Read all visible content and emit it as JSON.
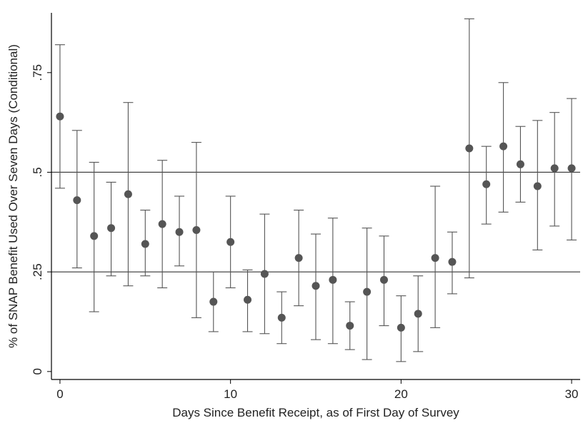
{
  "chart_data": {
    "type": "scatter",
    "xlabel": "Days Since Benefit Receipt, as of First Day of Survey",
    "ylabel": "% of SNAP Benefit Used Over Seven Days (Conditional)",
    "xlim": [
      -0.5,
      30.5
    ],
    "ylim": [
      -0.02,
      0.9
    ],
    "x_ticks": [
      0,
      10,
      20,
      30
    ],
    "x_tick_labels": [
      "0",
      "10",
      "20",
      "30"
    ],
    "y_ticks": [
      0,
      0.25,
      0.5,
      0.75
    ],
    "y_tick_labels": [
      "0",
      ".25",
      ".5",
      ".75"
    ],
    "reference_lines_y": [
      0.25,
      0.5
    ],
    "grid": false,
    "points": [
      {
        "x": 0,
        "y": 0.64,
        "lo": 0.46,
        "hi": 0.82
      },
      {
        "x": 1,
        "y": 0.43,
        "lo": 0.26,
        "hi": 0.605
      },
      {
        "x": 2,
        "y": 0.34,
        "lo": 0.15,
        "hi": 0.525
      },
      {
        "x": 3,
        "y": 0.36,
        "lo": 0.24,
        "hi": 0.475
      },
      {
        "x": 4,
        "y": 0.445,
        "lo": 0.215,
        "hi": 0.675
      },
      {
        "x": 5,
        "y": 0.32,
        "lo": 0.24,
        "hi": 0.405
      },
      {
        "x": 6,
        "y": 0.37,
        "lo": 0.21,
        "hi": 0.53
      },
      {
        "x": 7,
        "y": 0.35,
        "lo": 0.265,
        "hi": 0.44
      },
      {
        "x": 8,
        "y": 0.355,
        "lo": 0.135,
        "hi": 0.575
      },
      {
        "x": 9,
        "y": 0.175,
        "lo": 0.1,
        "hi": 0.25
      },
      {
        "x": 10,
        "y": 0.325,
        "lo": 0.21,
        "hi": 0.44
      },
      {
        "x": 11,
        "y": 0.18,
        "lo": 0.1,
        "hi": 0.255
      },
      {
        "x": 12,
        "y": 0.245,
        "lo": 0.095,
        "hi": 0.395
      },
      {
        "x": 13,
        "y": 0.135,
        "lo": 0.07,
        "hi": 0.2
      },
      {
        "x": 14,
        "y": 0.285,
        "lo": 0.165,
        "hi": 0.405
      },
      {
        "x": 15,
        "y": 0.215,
        "lo": 0.08,
        "hi": 0.345
      },
      {
        "x": 16,
        "y": 0.23,
        "lo": 0.07,
        "hi": 0.385
      },
      {
        "x": 17,
        "y": 0.115,
        "lo": 0.055,
        "hi": 0.175
      },
      {
        "x": 18,
        "y": 0.2,
        "lo": 0.03,
        "hi": 0.36
      },
      {
        "x": 19,
        "y": 0.23,
        "lo": 0.115,
        "hi": 0.34
      },
      {
        "x": 20,
        "y": 0.11,
        "lo": 0.025,
        "hi": 0.19
      },
      {
        "x": 21,
        "y": 0.145,
        "lo": 0.05,
        "hi": 0.24
      },
      {
        "x": 22,
        "y": 0.285,
        "lo": 0.11,
        "hi": 0.465
      },
      {
        "x": 23,
        "y": 0.275,
        "lo": 0.195,
        "hi": 0.35
      },
      {
        "x": 24,
        "y": 0.56,
        "lo": 0.235,
        "hi": 0.885
      },
      {
        "x": 25,
        "y": 0.47,
        "lo": 0.37,
        "hi": 0.565
      },
      {
        "x": 26,
        "y": 0.565,
        "lo": 0.4,
        "hi": 0.725
      },
      {
        "x": 27,
        "y": 0.52,
        "lo": 0.425,
        "hi": 0.615
      },
      {
        "x": 28,
        "y": 0.465,
        "lo": 0.305,
        "hi": 0.63
      },
      {
        "x": 29,
        "y": 0.51,
        "lo": 0.365,
        "hi": 0.65
      },
      {
        "x": 30,
        "y": 0.51,
        "lo": 0.33,
        "hi": 0.685
      }
    ],
    "colors": {
      "marker": "#555555",
      "error_bar": "#555555",
      "axis": "#000000",
      "reference_line": "#333333"
    }
  }
}
